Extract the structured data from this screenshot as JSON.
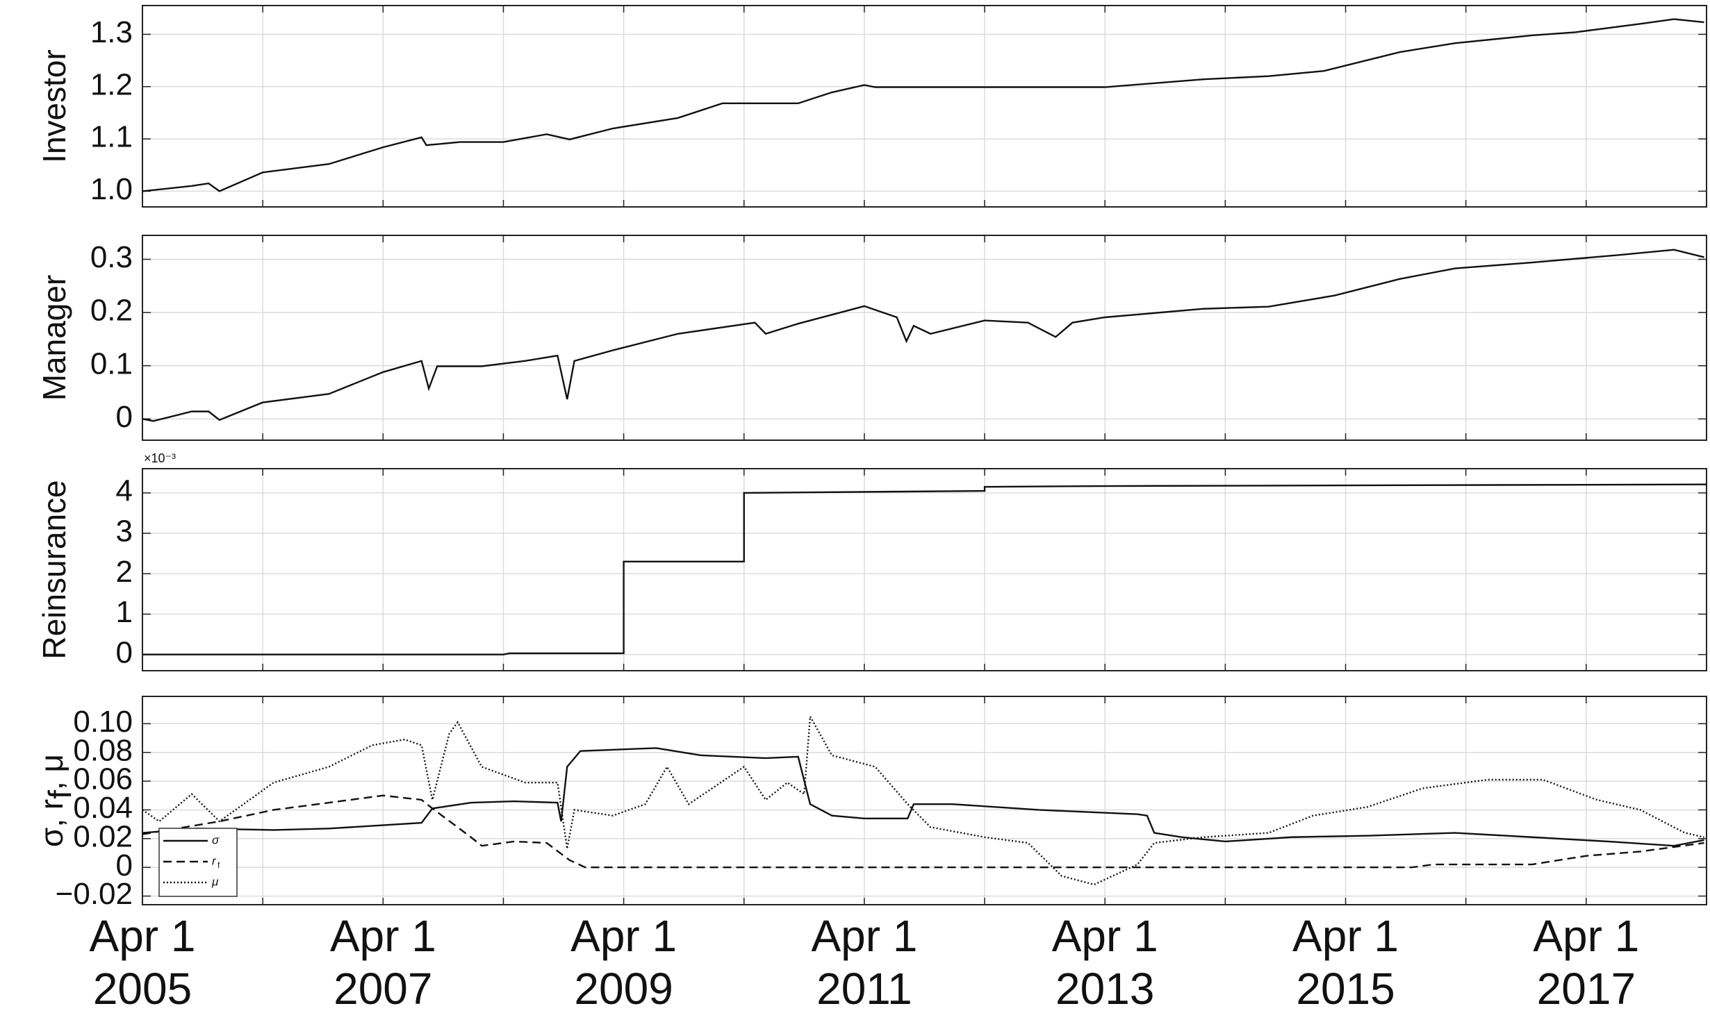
{
  "chart_data": [
    {
      "type": "line",
      "ylabel": "Investor",
      "color": "#111111",
      "x": [
        2005.25,
        2005.66,
        2005.8,
        2005.89,
        2006.25,
        2006.8,
        2007.25,
        2007.57,
        2007.61,
        2007.89,
        2008.25,
        2008.61,
        2008.8,
        2009.16,
        2009.7,
        2010.07,
        2010.7,
        2010.98,
        2011.25,
        2011.34,
        2013.25,
        2014.07,
        2014.61,
        2015.07,
        2015.7,
        2016.16,
        2016.8,
        2017.16,
        2017.7,
        2017.98,
        2018.23
      ],
      "values": [
        1.0,
        1.01,
        1.015,
        1.0,
        1.036,
        1.052,
        1.084,
        1.103,
        1.088,
        1.094,
        1.094,
        1.109,
        1.099,
        1.12,
        1.14,
        1.168,
        1.168,
        1.189,
        1.203,
        1.199,
        1.199,
        1.214,
        1.22,
        1.23,
        1.266,
        1.283,
        1.298,
        1.304,
        1.32,
        1.329,
        1.323
      ],
      "xlim": [
        2005.25,
        2018.25
      ],
      "xticks": [
        2005.25,
        2007.25,
        2009.25,
        2011.25,
        2013.25,
        2015.25,
        2017.25
      ],
      "xticklabels": false,
      "xminorticks": [
        2006.25,
        2008.25,
        2010.25,
        2012.25,
        2014.25,
        2016.25
      ],
      "ylim": [
        0.97,
        1.355
      ],
      "yticks": [
        {
          "value": 1,
          "label": "1.0"
        },
        1.1,
        1.2,
        1.3
      ],
      "grid": true
    },
    {
      "type": "line",
      "ylabel": "Manager",
      "color": "#111111",
      "x": [
        2005.25,
        2005.34,
        2005.66,
        2005.8,
        2005.89,
        2006.25,
        2006.8,
        2007.25,
        2007.57,
        2007.63,
        2007.7,
        2008.07,
        2008.43,
        2008.7,
        2008.78,
        2008.84,
        2009.16,
        2009.7,
        2010.34,
        2010.43,
        2010.7,
        2011.25,
        2011.52,
        2011.6,
        2011.66,
        2011.8,
        2012.25,
        2012.61,
        2012.84,
        2012.98,
        2013.25,
        2014.07,
        2014.61,
        2015.16,
        2015.7,
        2016.16,
        2016.8,
        2017.52,
        2017.98,
        2018.23
      ],
      "values": [
        0,
        -0.004,
        0.014,
        0.014,
        -0.002,
        0.031,
        0.047,
        0.088,
        0.109,
        0.057,
        0.099,
        0.099,
        0.109,
        0.119,
        0.037,
        0.109,
        0.129,
        0.16,
        0.181,
        0.16,
        0.179,
        0.212,
        0.191,
        0.146,
        0.175,
        0.16,
        0.185,
        0.181,
        0.154,
        0.181,
        0.191,
        0.207,
        0.211,
        0.232,
        0.263,
        0.283,
        0.294,
        0.308,
        0.318,
        0.304
      ],
      "xlim": [
        2005.25,
        2018.25
      ],
      "xticks": [
        2005.25,
        2007.25,
        2009.25,
        2011.25,
        2013.25,
        2015.25,
        2017.25
      ],
      "xticklabels": false,
      "xminorticks": [
        2006.25,
        2008.25,
        2010.25,
        2012.25,
        2014.25,
        2016.25
      ],
      "ylim": [
        -0.04,
        0.345
      ],
      "yticks": [
        0,
        0.1,
        0.2,
        0.3
      ],
      "grid": true
    },
    {
      "type": "line",
      "ylabel": "Reinsurance",
      "y_offset_text": "×10⁻³",
      "color": "#111111",
      "x": [
        2005.25,
        2008.25,
        2008.3,
        2009.25,
        2009.25,
        2010.25,
        2010.25,
        2012.25,
        2012.25,
        2013.25,
        2018.25
      ],
      "values": [
        0,
        0,
        0.03,
        0.03,
        2.3,
        2.3,
        4.0,
        4.05,
        4.15,
        4.17,
        4.21
      ],
      "xlim": [
        2005.25,
        2018.25
      ],
      "xticks": [
        2005.25,
        2007.25,
        2009.25,
        2011.25,
        2013.25,
        2015.25,
        2017.25
      ],
      "xticklabels": false,
      "xminorticks": [
        2006.25,
        2008.25,
        2010.25,
        2012.25,
        2014.25,
        2016.25
      ],
      "ylim": [
        -0.4,
        4.6
      ],
      "yticks": [
        0,
        1,
        2,
        3,
        4
      ],
      "grid": true
    },
    {
      "type": "line",
      "ylabel_parts": [
        "σ, r",
        "f",
        " , μ"
      ],
      "legend": "lower left",
      "series": [
        {
          "name": "σ",
          "color": "#111111",
          "dash": "solid",
          "x": [
            2005.25,
            2005.7,
            2006.34,
            2006.8,
            2007.57,
            2007.66,
            2007.98,
            2008.34,
            2008.7,
            2008.73,
            2008.78,
            2008.89,
            2009.52,
            2009.89,
            2010.43,
            2010.7,
            2010.8,
            2010.98,
            2011.25,
            2011.61,
            2011.66,
            2011.98,
            2012.7,
            2013.52,
            2013.6,
            2013.66,
            2013.89,
            2014.25,
            2014.8,
            2015.43,
            2016.16,
            2016.8,
            2017.43,
            2017.98,
            2018.23
          ],
          "values": [
            0.024,
            0.027,
            0.026,
            0.027,
            0.031,
            0.041,
            0.045,
            0.046,
            0.045,
            0.032,
            0.07,
            0.081,
            0.083,
            0.078,
            0.076,
            0.077,
            0.044,
            0.036,
            0.034,
            0.034,
            0.044,
            0.044,
            0.04,
            0.037,
            0.036,
            0.024,
            0.021,
            0.018,
            0.021,
            0.022,
            0.024,
            0.021,
            0.018,
            0.015,
            0.019
          ]
        },
        {
          "name": "r",
          "name_sub": "f",
          "color": "#111111",
          "dash": "dashed",
          "x": [
            2005.25,
            2005.89,
            2006.34,
            2006.8,
            2007.25,
            2007.57,
            2007.66,
            2007.98,
            2008.07,
            2008.34,
            2008.61,
            2008.8,
            2008.93,
            2009.25,
            2015.8,
            2015.98,
            2016.8,
            2017.25,
            2017.7,
            2018.23
          ],
          "values": [
            0.023,
            0.032,
            0.04,
            0.045,
            0.05,
            0.047,
            0.041,
            0.021,
            0.015,
            0.018,
            0.017,
            0.005,
            0,
            0,
            0,
            0.002,
            0.002,
            0.008,
            0.011,
            0.017
          ]
        },
        {
          "name": "μ",
          "color": "#111111",
          "dash": "dotted",
          "x": [
            2005.25,
            2005.39,
            2005.66,
            2005.89,
            2006.34,
            2006.8,
            2007.16,
            2007.43,
            2007.57,
            2007.66,
            2007.8,
            2007.87,
            2008.07,
            2008.43,
            2008.7,
            2008.78,
            2008.84,
            2009.16,
            2009.43,
            2009.61,
            2009.79,
            2010.25,
            2010.43,
            2010.61,
            2010.75,
            2010.8,
            2010.98,
            2011.34,
            2011.61,
            2011.8,
            2012.25,
            2012.61,
            2012.89,
            2013.16,
            2013.52,
            2013.66,
            2014.07,
            2014.61,
            2014.98,
            2015.43,
            2015.89,
            2016.43,
            2016.89,
            2017.34,
            2017.7,
            2018.07,
            2018.23
          ],
          "values": [
            0.04,
            0.032,
            0.051,
            0.032,
            0.059,
            0.07,
            0.085,
            0.089,
            0.085,
            0.047,
            0.093,
            0.101,
            0.07,
            0.059,
            0.059,
            0.013,
            0.04,
            0.036,
            0.044,
            0.07,
            0.044,
            0.07,
            0.047,
            0.059,
            0.051,
            0.105,
            0.078,
            0.07,
            0.044,
            0.028,
            0.021,
            0.017,
            -0.006,
            -0.012,
            0.002,
            0.017,
            0.021,
            0.024,
            0.036,
            0.042,
            0.055,
            0.061,
            0.061,
            0.047,
            0.04,
            0.024,
            0.021
          ]
        }
      ],
      "xlim": [
        2005.25,
        2018.25
      ],
      "xticks": [
        {
          "value": 2005.25,
          "label": "Apr 1\n2005"
        },
        {
          "value": 2007.25,
          "label": "Apr 1\n2007"
        },
        {
          "value": 2009.25,
          "label": "Apr 1\n2009"
        },
        {
          "value": 2011.25,
          "label": "Apr 1\n2011"
        },
        {
          "value": 2013.25,
          "label": "Apr 1\n2013"
        },
        {
          "value": 2015.25,
          "label": "Apr 1\n2015"
        },
        {
          "value": 2017.25,
          "label": "Apr 1\n2017"
        }
      ],
      "xminorticks": [
        2006.25,
        2008.25,
        2010.25,
        2012.25,
        2014.25,
        2016.25
      ],
      "ylim": [
        -0.026,
        0.119
      ],
      "yticks": [
        {
          "value": -0.02,
          "label": "−0.02"
        },
        0,
        0.02,
        0.04,
        0.06,
        0.08,
        {
          "value": 0.1,
          "label": "0.10"
        }
      ],
      "grid": true
    }
  ]
}
